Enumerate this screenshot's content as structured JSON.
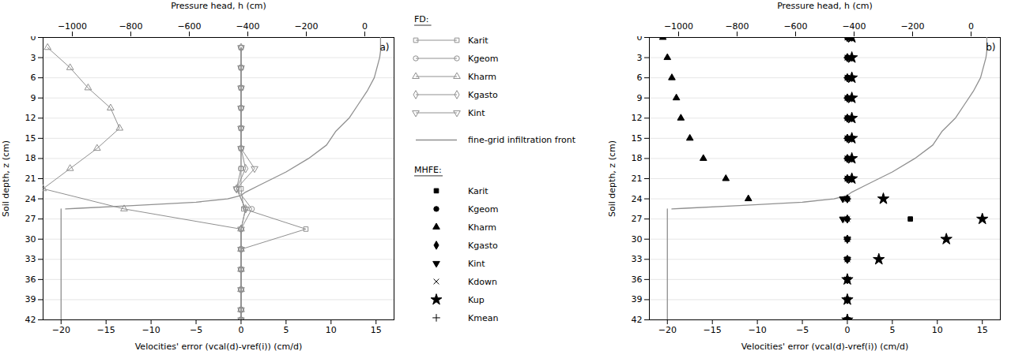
{
  "chart_data": [
    {
      "type": "line",
      "annotation": "a)",
      "legend_title": "FD:",
      "xlabel": "Velocities' error (vcal(d)-vref(i)) (cm/d)",
      "ylabel": "Soil depth, z (cm)",
      "x2label": "Pressure head, h (cm)",
      "xlim": [
        -22,
        17
      ],
      "xticks": [
        -20,
        -15,
        -10,
        -5,
        0,
        5,
        10,
        15
      ],
      "ylim": [
        42,
        0
      ],
      "yticks": [
        0,
        3,
        6,
        9,
        12,
        15,
        18,
        21,
        24,
        27,
        30,
        33,
        36,
        39,
        42
      ],
      "x2lim": [
        -1100,
        100
      ],
      "x2ticks": [
        -1000,
        -800,
        -600,
        -400,
        -200,
        0
      ],
      "grid": "y",
      "series": [
        {
          "name": "Karit",
          "type": "line",
          "color": "#909090",
          "marker": "square-open",
          "x": [
            0.0,
            0.0,
            0.0,
            0.0,
            0.0,
            0.0,
            0.0,
            0.0,
            0.3,
            7.2,
            0.0,
            0.0,
            0.0,
            0.0,
            0.0
          ],
          "y": [
            1.5,
            4.5,
            7.5,
            10.5,
            13.5,
            16.5,
            19.5,
            22.5,
            25.5,
            28.5,
            31.5,
            34.5,
            37.5,
            40.5,
            42.0
          ]
        },
        {
          "name": "Kgeom",
          "type": "line",
          "color": "#909090",
          "marker": "circle-open",
          "x": [
            0.0,
            0.0,
            0.0,
            0.0,
            0.0,
            0.0,
            0.0,
            -0.5,
            1.2,
            0.0,
            0.0,
            0.0,
            0.0,
            0.0,
            0.0
          ],
          "y": [
            1.5,
            4.5,
            7.5,
            10.5,
            13.5,
            16.5,
            19.5,
            22.5,
            25.5,
            28.5,
            31.5,
            34.5,
            37.5,
            40.5,
            42.0
          ]
        },
        {
          "name": "Kharm",
          "type": "line",
          "color": "#909090",
          "marker": "triangle-up-open",
          "x": [
            -21.5,
            -19.0,
            -17.0,
            -14.5,
            -13.5,
            -16.0,
            -19.0,
            -22.0,
            -13.0,
            0.0,
            0.0,
            0.0,
            0.0,
            0.0,
            0.0
          ],
          "y": [
            1.5,
            4.5,
            7.5,
            10.5,
            13.5,
            16.5,
            19.5,
            22.5,
            25.5,
            28.5,
            31.5,
            34.5,
            37.5,
            40.5,
            42.0
          ]
        },
        {
          "name": "Kgasto",
          "type": "line",
          "color": "#909090",
          "marker": "diamond-open",
          "x": [
            0.0,
            0.0,
            0.0,
            0.0,
            0.0,
            0.0,
            0.5,
            -0.5,
            0.5,
            0.0,
            0.0,
            0.0,
            0.0,
            0.0,
            0.0
          ],
          "y": [
            1.5,
            4.5,
            7.5,
            10.5,
            13.5,
            16.5,
            19.5,
            22.5,
            25.5,
            28.5,
            31.5,
            34.5,
            37.5,
            40.5,
            42.0
          ]
        },
        {
          "name": "Kint",
          "type": "line",
          "color": "#909090",
          "marker": "triangle-down-open",
          "x": [
            0.0,
            0.0,
            0.0,
            0.0,
            0.0,
            0.0,
            1.5,
            -0.5,
            0.5,
            0.0,
            0.0,
            0.0,
            0.0,
            0.0,
            0.0
          ],
          "y": [
            1.5,
            4.5,
            7.5,
            10.5,
            13.5,
            16.5,
            19.5,
            22.5,
            25.5,
            28.5,
            31.5,
            34.5,
            37.5,
            40.5,
            42.0
          ]
        },
        {
          "name": "fine-grid infiltration front",
          "type": "line",
          "color": "#909090",
          "x": [
            15.5,
            15.5,
            15.5,
            15.4,
            15.2,
            15.0,
            14.8,
            14.0,
            13.0,
            12.0,
            10.5,
            9.5,
            7.5,
            5.0,
            3.5,
            2.0,
            0.5,
            0.0,
            -1.5,
            -5.0,
            -12.0,
            -18.0,
            -19.5,
            null,
            -20.0,
            -20.0
          ],
          "y": [
            0,
            1,
            2,
            3,
            4,
            5,
            6,
            8,
            10,
            12,
            14,
            16,
            18,
            20,
            21,
            22,
            23,
            23.5,
            24,
            24.5,
            25,
            25.4,
            25.5,
            null,
            25.5,
            42
          ]
        }
      ]
    },
    {
      "type": "scatter",
      "annotation": "b)",
      "legend_title": "MHFE:",
      "xlabel": "Velocities' error (vcal(d)-vref(i)) (cm/d)",
      "ylabel": "Soil depth, z (cm)",
      "x2label": "Pressure head, h (cm)",
      "xlim": [
        -22,
        17
      ],
      "xticks": [
        -20,
        -15,
        -10,
        -5,
        0,
        5,
        10,
        15
      ],
      "ylim": [
        42,
        0
      ],
      "yticks": [
        0,
        3,
        6,
        9,
        12,
        15,
        18,
        21,
        24,
        27,
        30,
        33,
        36,
        39,
        42
      ],
      "x2lim": [
        -1100,
        100
      ],
      "x2ticks": [
        -1000,
        -800,
        -600,
        -400,
        -200,
        0
      ],
      "grid": "y",
      "series": [
        {
          "name": "fine-grid infiltration front",
          "type": "line",
          "color": "#909090",
          "x": [
            15.5,
            15.5,
            15.5,
            15.4,
            15.2,
            15.0,
            14.8,
            14.0,
            13.0,
            12.0,
            10.5,
            9.5,
            7.5,
            5.0,
            3.5,
            2.0,
            0.5,
            0.0,
            -1.5,
            -5.0,
            -12.0,
            -18.0,
            -19.5,
            null,
            -20.0,
            -20.0
          ],
          "y": [
            0,
            1,
            2,
            3,
            4,
            5,
            6,
            8,
            10,
            12,
            14,
            16,
            18,
            20,
            21,
            22,
            23,
            23.5,
            24,
            24.5,
            25,
            25.4,
            25.5,
            null,
            25.5,
            42
          ]
        },
        {
          "name": "Karit",
          "type": "scatter",
          "color": "#000000",
          "marker": "square",
          "x": [
            0,
            0,
            0,
            0,
            0,
            0,
            0,
            0,
            0,
            7,
            0,
            0,
            0,
            0,
            0
          ],
          "y": [
            0,
            3,
            6,
            9,
            12,
            15,
            18,
            21,
            24,
            27,
            30,
            33,
            36,
            39,
            42
          ]
        },
        {
          "name": "Kgeom",
          "type": "scatter",
          "color": "#000000",
          "marker": "circle",
          "x": [
            0,
            0,
            0,
            0,
            0,
            0,
            0,
            0,
            0,
            0,
            0,
            0,
            0,
            0,
            0
          ],
          "y": [
            0,
            3,
            6,
            9,
            12,
            15,
            18,
            21,
            24,
            27,
            30,
            33,
            36,
            39,
            42
          ]
        },
        {
          "name": "Kharm",
          "type": "scatter",
          "color": "#000000",
          "marker": "triangle-up",
          "x": [
            -20.5,
            -20.0,
            -19.5,
            -19.0,
            -18.5,
            -17.5,
            -16.0,
            -13.5,
            -11.0
          ],
          "y": [
            0,
            3,
            6,
            9,
            12,
            15,
            18,
            21,
            24
          ]
        },
        {
          "name": "Kgasto",
          "type": "scatter",
          "color": "#000000",
          "marker": "diamond",
          "x": [
            0,
            0,
            0,
            0,
            0,
            0,
            0,
            0,
            0,
            0,
            0,
            0,
            0,
            0,
            0
          ],
          "y": [
            0,
            3,
            6,
            9,
            12,
            15,
            18,
            21,
            24,
            27,
            30,
            33,
            36,
            39,
            42
          ]
        },
        {
          "name": "Kint",
          "type": "scatter",
          "color": "#000000",
          "marker": "triangle-down",
          "x": [
            0.5,
            0.5,
            0.5,
            0.5,
            0.5,
            0.5,
            0.5,
            0.5,
            -0.5,
            -0.5,
            0,
            0,
            0,
            0,
            0
          ],
          "y": [
            0,
            3,
            6,
            9,
            12,
            15,
            18,
            21,
            24,
            27,
            30,
            33,
            36,
            39,
            42
          ]
        },
        {
          "name": "Kdown",
          "type": "scatter",
          "color": "#000000",
          "marker": "x",
          "x": [
            0,
            0,
            0,
            0,
            0,
            0,
            0,
            0,
            0,
            0,
            0,
            0,
            0,
            0,
            0
          ],
          "y": [
            0,
            3,
            6,
            9,
            12,
            15,
            18,
            21,
            24,
            27,
            30,
            33,
            36,
            39,
            42
          ]
        },
        {
          "name": "Kup",
          "type": "scatter",
          "color": "#000000",
          "marker": "star",
          "x": [
            0.5,
            0.5,
            0.5,
            0.5,
            0.5,
            0.5,
            0.5,
            0.5,
            4.0,
            15.0,
            11.0,
            3.5,
            0,
            0,
            0
          ],
          "y": [
            0,
            3,
            6,
            9,
            12,
            15,
            18,
            21,
            24,
            27,
            30,
            33,
            36,
            39,
            42
          ]
        },
        {
          "name": "Kmean",
          "type": "scatter",
          "color": "#000000",
          "marker": "plus",
          "x": [
            0,
            0,
            0,
            0,
            0,
            0,
            0,
            0,
            0,
            0,
            0,
            0,
            0,
            0,
            0
          ],
          "y": [
            0,
            3,
            6,
            9,
            12,
            15,
            18,
            21,
            24,
            27,
            30,
            33,
            36,
            39,
            42
          ]
        }
      ]
    }
  ]
}
